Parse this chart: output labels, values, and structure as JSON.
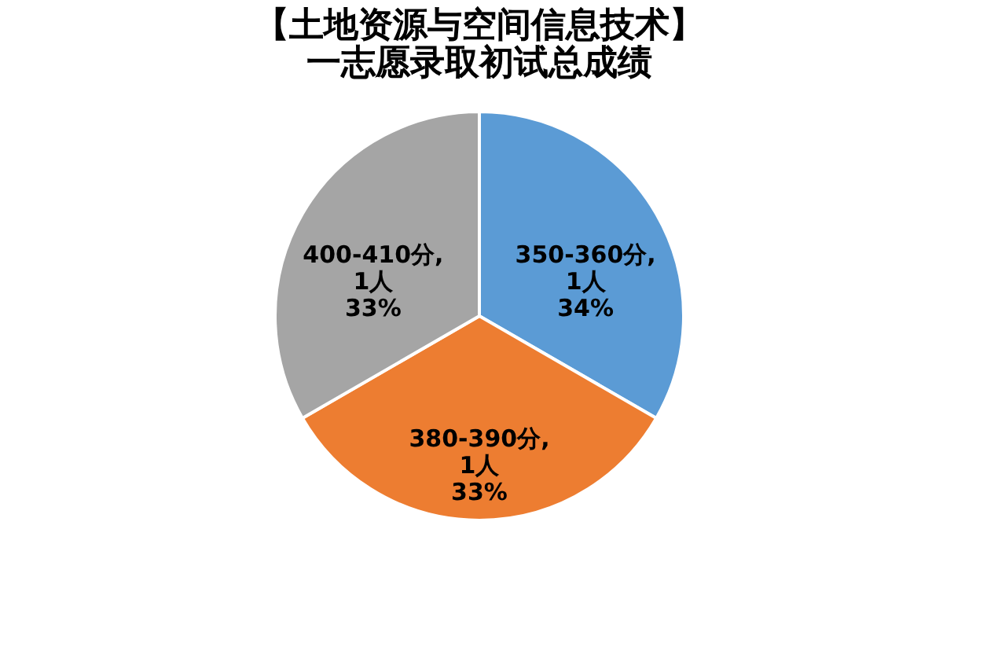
{
  "chart_data": {
    "type": "pie",
    "title": [
      "【土地资源与空间信息技术】",
      "一志愿录取初试总成绩"
    ],
    "categories": [
      "350-360分",
      "380-390分",
      "400-410分"
    ],
    "values": [
      1,
      1,
      1
    ],
    "colors": [
      "#5b9bd5",
      "#ed7d31",
      "#a5a5a5"
    ],
    "value_labels": [
      ",\n1人\n34%",
      ",\n1人\n33%",
      ",\n1人\n33%"
    ],
    "legend": false
  }
}
